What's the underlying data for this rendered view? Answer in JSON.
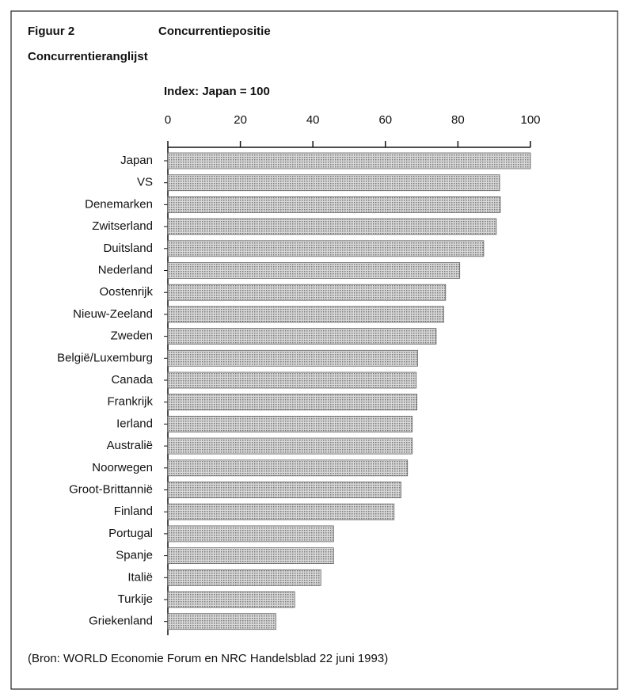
{
  "chart_data": {
    "type": "bar",
    "orientation": "horizontal",
    "figure_label": "Figuur 2",
    "title": "Concurrentiepositie",
    "subtitle": "Concurrentieranglijst",
    "xlabel": "Index: Japan = 100",
    "categories": [
      "Japan",
      "VS",
      "Denemarken",
      "Zwitserland",
      "Duitsland",
      "Nederland",
      "Oostenrijk",
      "Nieuw-Zeeland",
      "Zweden",
      "België/Luxemburg",
      "Canada",
      "Frankrijk",
      "Ierland",
      "Australië",
      "Noorwegen",
      "Groot-Brittannië",
      "Finland",
      "Portugal",
      "Spanje",
      "Italië",
      "Turkije",
      "Griekenland"
    ],
    "values": [
      100,
      91.5,
      91.7,
      90.6,
      87.1,
      80.5,
      76.6,
      76.1,
      74,
      68.9,
      68.5,
      68.7,
      67.4,
      67.4,
      66.1,
      64.3,
      62.4,
      45.7,
      45.7,
      42.2,
      35,
      29.8
    ],
    "color": "#b9b9b9",
    "xlim": [
      0,
      100
    ],
    "xticks": [
      0,
      20,
      40,
      60,
      80,
      100
    ],
    "source": "(Bron: WORLD Economie Forum en NRC Handelsblad 22 juni 1993)"
  }
}
